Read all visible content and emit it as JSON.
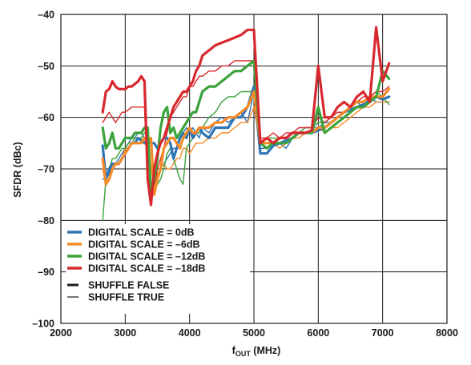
{
  "chart_data": {
    "type": "line",
    "xlabel_main": "f",
    "xlabel_sub": "OUT",
    "xlabel_unit": " (MHz)",
    "ylabel": "SFDR (dBc)",
    "xlim": [
      2000,
      8000
    ],
    "ylim": [
      -100,
      -40
    ],
    "xticks": [
      2000,
      3000,
      4000,
      5000,
      6000,
      7000,
      8000
    ],
    "yticks": [
      -40,
      -50,
      -60,
      -70,
      -80,
      -90,
      -100
    ],
    "xtick_labels": [
      "2000",
      "3000",
      "4000",
      "5000",
      "6000",
      "7000",
      "8000"
    ],
    "ytick_labels": [
      "–40",
      "–50",
      "–60",
      "–70",
      "–80",
      "–90",
      "–100"
    ],
    "grid": true,
    "legend_position": "bottom-left",
    "legend": {
      "entries": [
        {
          "label": "DIGITAL SCALE = 0dB",
          "color": "#2e75b6"
        },
        {
          "label": "DIGITAL SCALE = –6dB",
          "color": "#f58a27"
        },
        {
          "label": "DIGITAL SCALE = –12dB",
          "color": "#3aa33a"
        },
        {
          "label": "DIGITAL SCALE = –18dB",
          "color": "#d8282d"
        }
      ],
      "style_entries": [
        {
          "label": "SHUFFLE FALSE",
          "style": "thick"
        },
        {
          "label": "SHUFFLE TRUE",
          "style": "thin"
        }
      ]
    },
    "series": [
      {
        "name": "DIGITAL SCALE = 0dB",
        "shuffle": "false",
        "color": "#2e75b6",
        "x": [
          2650,
          2700,
          2750,
          2800,
          2850,
          2900,
          2950,
          3000,
          3050,
          3100,
          3150,
          3200,
          3250,
          3300,
          3350,
          3400,
          3450,
          3500,
          3550,
          3600,
          3650,
          3700,
          3750,
          3800,
          3850,
          3900,
          3950,
          4000,
          4050,
          4100,
          4150,
          4200,
          4300,
          4400,
          4500,
          4600,
          4700,
          4800,
          4900,
          5000,
          5100,
          5200,
          5300,
          5400,
          5500,
          5600,
          5700,
          5800,
          5900,
          6000,
          6100,
          6200,
          6300,
          6400,
          6500,
          6600,
          6700,
          6800,
          6900,
          7000,
          7100
        ],
        "y": [
          -65.5,
          -72,
          -70,
          -69,
          -69,
          -69,
          -68,
          -67,
          -66,
          -65,
          -65,
          -64,
          -64.5,
          -65,
          -64.5,
          -65,
          -65,
          -66,
          -65,
          -64,
          -64,
          -65,
          -68,
          -66,
          -64,
          -63,
          -64,
          -62,
          -64,
          -63,
          -62,
          -63,
          -64,
          -62,
          -62,
          -62,
          -60,
          -60,
          -58,
          -54,
          -67,
          -67,
          -65.5,
          -65,
          -64.5,
          -64,
          -63,
          -63,
          -63,
          -62.5,
          -62,
          -61,
          -60,
          -59,
          -58.5,
          -58,
          -57.5,
          -57,
          -56,
          -56.5,
          -56
        ]
      },
      {
        "name": "DIGITAL SCALE = 0dB",
        "shuffle": "true",
        "color": "#2e75b6",
        "x": [
          2650,
          2700,
          2750,
          2800,
          2850,
          2900,
          2950,
          3000,
          3050,
          3100,
          3150,
          3200,
          3250,
          3300,
          3350,
          3400,
          3450,
          3500,
          3550,
          3600,
          3650,
          3700,
          3750,
          3800,
          3850,
          3900,
          3950,
          4000,
          4050,
          4100,
          4150,
          4200,
          4300,
          4400,
          4500,
          4600,
          4700,
          4800,
          4900,
          5000,
          5100,
          5200,
          5300,
          5400,
          5500,
          5600,
          5700,
          5800,
          5900,
          6000,
          6100,
          6200,
          6300,
          6400,
          6500,
          6600,
          6700,
          6800,
          6900,
          7000,
          7100
        ],
        "y": [
          -72,
          -72,
          -71,
          -69,
          -69,
          -68,
          -67,
          -66,
          -65,
          -64,
          -64,
          -63,
          -63,
          -64,
          -64,
          -65,
          -74,
          -72,
          -70,
          -69,
          -68,
          -67,
          -66,
          -66,
          -64,
          -63,
          -62,
          -63,
          -62,
          -63,
          -64,
          -62,
          -63,
          -61,
          -60,
          -61,
          -60,
          -59,
          -61,
          -55,
          -66,
          -66,
          -65,
          -65,
          -66,
          -64,
          -63,
          -62,
          -62,
          -62,
          -61,
          -61,
          -60,
          -59,
          -58,
          -57,
          -58,
          -56,
          -57,
          -57,
          -57
        ]
      },
      {
        "name": "DIGITAL SCALE = –6dB",
        "shuffle": "false",
        "color": "#f58a27",
        "x": [
          2650,
          2700,
          2750,
          2800,
          2850,
          2900,
          2950,
          3000,
          3050,
          3100,
          3150,
          3200,
          3250,
          3300,
          3350,
          3400,
          3450,
          3500,
          3550,
          3600,
          3650,
          3700,
          3750,
          3800,
          3850,
          3900,
          3950,
          4000,
          4050,
          4100,
          4150,
          4200,
          4300,
          4400,
          4500,
          4600,
          4700,
          4800,
          4900,
          5000,
          5100,
          5200,
          5300,
          5400,
          5500,
          5600,
          5700,
          5800,
          5900,
          6000,
          6100,
          6200,
          6300,
          6400,
          6500,
          6600,
          6700,
          6800,
          6900,
          7000,
          7100
        ],
        "y": [
          -68,
          -73,
          -72,
          -70,
          -69,
          -69,
          -68,
          -67,
          -66,
          -65,
          -65,
          -65,
          -65,
          -64,
          -65,
          -64,
          -75,
          -72,
          -70,
          -66,
          -65,
          -64,
          -64,
          -65,
          -66,
          -64,
          -63,
          -62,
          -63,
          -63,
          -62,
          -62,
          -62,
          -61,
          -61,
          -60,
          -60,
          -59,
          -58,
          -55,
          -65,
          -65,
          -65,
          -64,
          -64,
          -63,
          -63,
          -63,
          -63,
          -62,
          -62,
          -61,
          -60,
          -59,
          -58,
          -57,
          -57,
          -56,
          -56,
          -56,
          -54.5
        ]
      },
      {
        "name": "DIGITAL SCALE = –6dB",
        "shuffle": "true",
        "color": "#f58a27",
        "x": [
          2650,
          2700,
          2750,
          2800,
          2850,
          2900,
          2950,
          3000,
          3050,
          3100,
          3150,
          3200,
          3250,
          3300,
          3350,
          3400,
          3450,
          3500,
          3550,
          3600,
          3650,
          3700,
          3750,
          3800,
          3850,
          3900,
          3950,
          4000,
          4050,
          4100,
          4150,
          4200,
          4300,
          4400,
          4500,
          4600,
          4700,
          4800,
          4900,
          5000,
          5100,
          5200,
          5300,
          5400,
          5500,
          5600,
          5700,
          5800,
          5900,
          6000,
          6100,
          6200,
          6300,
          6400,
          6500,
          6600,
          6700,
          6800,
          6900,
          7000,
          7100
        ],
        "y": [
          -70,
          -73,
          -72,
          -70,
          -69,
          -69,
          -68,
          -66,
          -66,
          -65,
          -65,
          -64,
          -64,
          -65,
          -66,
          -70,
          -73,
          -71,
          -70,
          -69,
          -70,
          -70,
          -69,
          -68,
          -68,
          -66,
          -66,
          -67,
          -66,
          -65,
          -65,
          -65,
          -64,
          -64,
          -63,
          -63,
          -62,
          -61,
          -61,
          -58,
          -65,
          -65,
          -65,
          -66,
          -65,
          -64,
          -64,
          -63,
          -63,
          -62,
          -63,
          -62,
          -62,
          -61,
          -60,
          -59,
          -58,
          -58,
          -57,
          -57,
          -57
        ]
      },
      {
        "name": "DIGITAL SCALE = –12dB",
        "shuffle": "false",
        "color": "#3aa33a",
        "x": [
          2650,
          2700,
          2750,
          2800,
          2850,
          2900,
          2950,
          3000,
          3050,
          3100,
          3150,
          3200,
          3250,
          3300,
          3350,
          3400,
          3450,
          3500,
          3550,
          3600,
          3650,
          3700,
          3750,
          3800,
          3850,
          3900,
          3950,
          4000,
          4050,
          4100,
          4150,
          4200,
          4300,
          4400,
          4500,
          4600,
          4700,
          4800,
          4900,
          5000,
          5100,
          5200,
          5300,
          5400,
          5500,
          5600,
          5700,
          5800,
          5900,
          6000,
          6100,
          6200,
          6300,
          6400,
          6500,
          6600,
          6700,
          6800,
          6900,
          7000,
          7100
        ],
        "y": [
          -62,
          -66,
          -65,
          -63,
          -66,
          -66,
          -65,
          -64,
          -64,
          -64,
          -63,
          -63,
          -63,
          -62,
          -62,
          -75,
          -72,
          -68,
          -62,
          -59,
          -58,
          -63,
          -62,
          -64,
          -63,
          -62,
          -61,
          -60,
          -59,
          -59,
          -57,
          -55,
          -54,
          -54,
          -53,
          -52,
          -51,
          -51,
          -50,
          -49,
          -65,
          -66,
          -65,
          -65,
          -65,
          -64,
          -63,
          -63,
          -63,
          -58,
          -63,
          -62,
          -61,
          -60,
          -59,
          -58,
          -58,
          -57,
          -56,
          -51,
          -52.5
        ]
      },
      {
        "name": "DIGITAL SCALE = –12dB",
        "shuffle": "true",
        "color": "#3aa33a",
        "x": [
          2650,
          2700,
          2750,
          2800,
          2850,
          2900,
          2950,
          3000,
          3050,
          3100,
          3150,
          3200,
          3250,
          3300,
          3350,
          3400,
          3450,
          3500,
          3550,
          3600,
          3650,
          3700,
          3750,
          3800,
          3850,
          3900,
          3950,
          4000,
          4050,
          4100,
          4150,
          4200,
          4300,
          4400,
          4500,
          4600,
          4700,
          4800,
          4900,
          5000,
          5100,
          5200,
          5300,
          5400,
          5500,
          5600,
          5700,
          5800,
          5900,
          6000,
          6100,
          6200,
          6300,
          6400,
          6500,
          6600,
          6700,
          6800,
          6900,
          7000,
          7100
        ],
        "y": [
          -80,
          -72,
          -70,
          -68,
          -68,
          -67,
          -66,
          -66,
          -65,
          -65,
          -64,
          -64,
          -64,
          -63,
          -63,
          -75,
          -74,
          -73,
          -72,
          -70,
          -67,
          -66,
          -68,
          -70,
          -72,
          -73,
          -66,
          -65,
          -64,
          -63,
          -63,
          -62,
          -60,
          -59,
          -57,
          -56,
          -56,
          -55,
          -55,
          -55,
          -65,
          -64,
          -64,
          -64,
          -64,
          -63,
          -63,
          -62,
          -62,
          -61,
          -61,
          -60,
          -59,
          -59,
          -58,
          -57,
          -57,
          -56,
          -55,
          -56,
          -57.5
        ]
      },
      {
        "name": "DIGITAL SCALE = –18dB",
        "shuffle": "false",
        "color": "#d8282d",
        "x": [
          2650,
          2700,
          2750,
          2800,
          2850,
          2900,
          2950,
          3000,
          3050,
          3100,
          3150,
          3200,
          3250,
          3300,
          3350,
          3400,
          3450,
          3500,
          3550,
          3600,
          3650,
          3700,
          3750,
          3800,
          3850,
          3900,
          3950,
          4000,
          4050,
          4100,
          4150,
          4200,
          4300,
          4400,
          4500,
          4600,
          4700,
          4800,
          4900,
          5000,
          5100,
          5200,
          5300,
          5400,
          5500,
          5600,
          5700,
          5800,
          5900,
          6000,
          6100,
          6200,
          6300,
          6400,
          6500,
          6600,
          6700,
          6800,
          6900,
          7000,
          7100
        ],
        "y": [
          -59,
          -55,
          -54.5,
          -53,
          -54,
          -54.5,
          -54.5,
          -54.5,
          -54,
          -54,
          -53.5,
          -53,
          -52,
          -53,
          -72,
          -77,
          -70,
          -67,
          -65,
          -64,
          -62,
          -60,
          -58,
          -57,
          -56,
          -55,
          -55,
          -54,
          -53,
          -51,
          -50,
          -48,
          -47,
          -46,
          -45.5,
          -45,
          -44.5,
          -44,
          -43,
          -43,
          -65,
          -64,
          -65,
          -64,
          -64,
          -63,
          -63,
          -63,
          -62.5,
          -50,
          -60,
          -60,
          -58,
          -57,
          -58,
          -56,
          -55,
          -57,
          -42.5,
          -53,
          -49.5
        ]
      },
      {
        "name": "DIGITAL SCALE = –18dB",
        "shuffle": "true",
        "color": "#d8282d",
        "x": [
          2650,
          2700,
          2750,
          2800,
          2850,
          2900,
          2950,
          3000,
          3050,
          3100,
          3150,
          3200,
          3250,
          3300,
          3350,
          3400,
          3450,
          3500,
          3550,
          3600,
          3650,
          3700,
          3750,
          3800,
          3850,
          3900,
          3950,
          4000,
          4050,
          4100,
          4150,
          4200,
          4300,
          4400,
          4500,
          4600,
          4700,
          4800,
          4900,
          5000,
          5100,
          5200,
          5300,
          5400,
          5500,
          5600,
          5700,
          5800,
          5900,
          6000,
          6100,
          6200,
          6300,
          6400,
          6500,
          6600,
          6700,
          6800,
          6900,
          7000,
          7100
        ],
        "y": [
          -61,
          -60,
          -59,
          -60,
          -61,
          -60,
          -59,
          -59,
          -58.5,
          -58,
          -58,
          -58,
          -58,
          -58,
          -72,
          -73,
          -74,
          -70,
          -68,
          -66,
          -63,
          -60,
          -59,
          -58,
          -57,
          -56,
          -56,
          -54,
          -54,
          -53,
          -52,
          -52,
          -51,
          -51,
          -50,
          -50,
          -49,
          -49,
          -49,
          -49,
          -64,
          -64,
          -63,
          -64,
          -63,
          -63,
          -62,
          -62,
          -62,
          -60,
          -61,
          -60,
          -59,
          -59,
          -58,
          -57,
          -56,
          -56,
          -55,
          -55,
          -54
        ]
      }
    ]
  }
}
